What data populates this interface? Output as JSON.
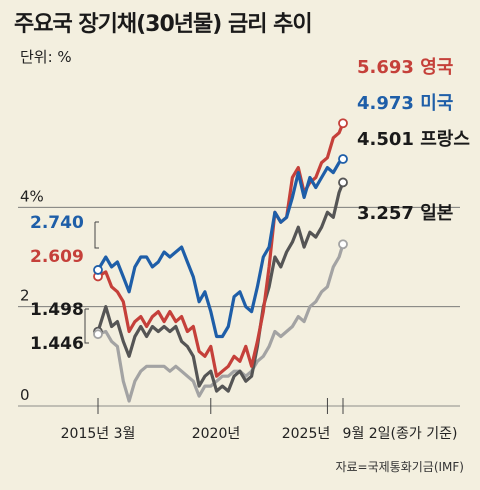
{
  "title": "주요국 장기채(30년물) 금리 추이",
  "unit": "단위: %",
  "source": "자료=국제통화기금(IMF)",
  "chart_data": {
    "type": "line",
    "title": "주요국 장기채(30년물) 금리 추이",
    "ylim": [
      0,
      6
    ],
    "y_ticks": [
      {
        "value": 4,
        "label": "4%"
      },
      {
        "value": 2,
        "label": "2"
      },
      {
        "value": 0,
        "label": "0"
      }
    ],
    "x_range": [
      2014.5,
      2025.75
    ],
    "x_ticks": [
      {
        "x": 2015.167,
        "label": "2015년 3월"
      },
      {
        "x": 2020.0,
        "label": "2020년"
      },
      {
        "x": 2025.0,
        "label": "2025년"
      },
      {
        "x": 2025.667,
        "label": "9월 2일(종가 기준)"
      }
    ],
    "grid": "horizontal",
    "series": [
      {
        "name": "영국",
        "color": "#c5403a",
        "start_label": "2.609",
        "end_label": "5.693",
        "points": [
          [
            2015.167,
            2.609
          ],
          [
            2015.5,
            2.7
          ],
          [
            2015.75,
            2.4
          ],
          [
            2016.0,
            2.3
          ],
          [
            2016.25,
            2.1
          ],
          [
            2016.5,
            1.5
          ],
          [
            2016.75,
            1.7
          ],
          [
            2017.0,
            1.8
          ],
          [
            2017.25,
            1.6
          ],
          [
            2017.5,
            1.8
          ],
          [
            2017.75,
            1.9
          ],
          [
            2018.0,
            1.7
          ],
          [
            2018.25,
            1.9
          ],
          [
            2018.5,
            1.7
          ],
          [
            2018.75,
            1.8
          ],
          [
            2019.0,
            1.5
          ],
          [
            2019.25,
            1.6
          ],
          [
            2019.5,
            1.1
          ],
          [
            2019.75,
            1.0
          ],
          [
            2020.0,
            1.2
          ],
          [
            2020.25,
            0.6
          ],
          [
            2020.5,
            0.7
          ],
          [
            2020.75,
            0.8
          ],
          [
            2021.0,
            1.0
          ],
          [
            2021.25,
            0.9
          ],
          [
            2021.5,
            1.2
          ],
          [
            2021.75,
            0.8
          ],
          [
            2022.0,
            1.3
          ],
          [
            2022.25,
            1.9
          ],
          [
            2022.5,
            2.8
          ],
          [
            2022.75,
            3.9
          ],
          [
            2023.0,
            3.7
          ],
          [
            2023.25,
            3.8
          ],
          [
            2023.5,
            4.6
          ],
          [
            2023.75,
            4.8
          ],
          [
            2024.0,
            4.3
          ],
          [
            2024.25,
            4.5
          ],
          [
            2024.5,
            4.6
          ],
          [
            2024.75,
            4.9
          ],
          [
            2025.0,
            5.0
          ],
          [
            2025.25,
            5.4
          ],
          [
            2025.5,
            5.5
          ],
          [
            2025.667,
            5.693
          ]
        ]
      },
      {
        "name": "미국",
        "color": "#1e5ea8",
        "start_label": "2.740",
        "end_label": "4.973",
        "points": [
          [
            2015.167,
            2.74
          ],
          [
            2015.5,
            3.0
          ],
          [
            2015.75,
            2.8
          ],
          [
            2016.0,
            2.9
          ],
          [
            2016.25,
            2.6
          ],
          [
            2016.5,
            2.3
          ],
          [
            2016.75,
            2.8
          ],
          [
            2017.0,
            3.0
          ],
          [
            2017.25,
            3.0
          ],
          [
            2017.5,
            2.8
          ],
          [
            2017.75,
            2.9
          ],
          [
            2018.0,
            3.1
          ],
          [
            2018.25,
            3.0
          ],
          [
            2018.5,
            3.1
          ],
          [
            2018.75,
            3.2
          ],
          [
            2019.0,
            2.9
          ],
          [
            2019.25,
            2.6
          ],
          [
            2019.5,
            2.1
          ],
          [
            2019.75,
            2.3
          ],
          [
            2020.0,
            1.9
          ],
          [
            2020.25,
            1.4
          ],
          [
            2020.5,
            1.4
          ],
          [
            2020.75,
            1.6
          ],
          [
            2021.0,
            2.2
          ],
          [
            2021.25,
            2.3
          ],
          [
            2021.5,
            2.0
          ],
          [
            2021.75,
            1.9
          ],
          [
            2022.0,
            2.4
          ],
          [
            2022.25,
            3.0
          ],
          [
            2022.5,
            3.2
          ],
          [
            2022.75,
            3.9
          ],
          [
            2023.0,
            3.7
          ],
          [
            2023.25,
            3.8
          ],
          [
            2023.5,
            4.2
          ],
          [
            2023.75,
            4.7
          ],
          [
            2024.0,
            4.2
          ],
          [
            2024.25,
            4.6
          ],
          [
            2024.5,
            4.4
          ],
          [
            2024.75,
            4.6
          ],
          [
            2025.0,
            4.8
          ],
          [
            2025.25,
            4.7
          ],
          [
            2025.5,
            4.9
          ],
          [
            2025.667,
            4.973
          ]
        ]
      },
      {
        "name": "프랑스",
        "color": "#555555",
        "start_label": "1.498",
        "end_label": "4.501",
        "points": [
          [
            2015.167,
            1.498
          ],
          [
            2015.5,
            2.0
          ],
          [
            2015.75,
            1.6
          ],
          [
            2016.0,
            1.7
          ],
          [
            2016.25,
            1.3
          ],
          [
            2016.5,
            1.0
          ],
          [
            2016.75,
            1.4
          ],
          [
            2017.0,
            1.6
          ],
          [
            2017.25,
            1.4
          ],
          [
            2017.5,
            1.6
          ],
          [
            2017.75,
            1.5
          ],
          [
            2018.0,
            1.6
          ],
          [
            2018.25,
            1.5
          ],
          [
            2018.5,
            1.6
          ],
          [
            2018.75,
            1.3
          ],
          [
            2019.0,
            1.2
          ],
          [
            2019.25,
            1.0
          ],
          [
            2019.5,
            0.4
          ],
          [
            2019.75,
            0.6
          ],
          [
            2020.0,
            0.7
          ],
          [
            2020.25,
            0.3
          ],
          [
            2020.5,
            0.4
          ],
          [
            2020.75,
            0.3
          ],
          [
            2021.0,
            0.6
          ],
          [
            2021.25,
            0.7
          ],
          [
            2021.5,
            0.5
          ],
          [
            2021.75,
            0.6
          ],
          [
            2022.0,
            1.2
          ],
          [
            2022.25,
            2.0
          ],
          [
            2022.5,
            2.4
          ],
          [
            2022.75,
            3.0
          ],
          [
            2023.0,
            2.8
          ],
          [
            2023.25,
            3.1
          ],
          [
            2023.5,
            3.3
          ],
          [
            2023.75,
            3.6
          ],
          [
            2024.0,
            3.2
          ],
          [
            2024.25,
            3.5
          ],
          [
            2024.5,
            3.4
          ],
          [
            2024.75,
            3.6
          ],
          [
            2025.0,
            3.9
          ],
          [
            2025.25,
            3.8
          ],
          [
            2025.5,
            4.3
          ],
          [
            2025.667,
            4.501
          ]
        ]
      },
      {
        "name": "일본",
        "color": "#a3a3a3",
        "start_label": "1.446",
        "end_label": "3.257",
        "points": [
          [
            2015.167,
            1.446
          ],
          [
            2015.5,
            1.5
          ],
          [
            2015.75,
            1.3
          ],
          [
            2016.0,
            1.2
          ],
          [
            2016.25,
            0.5
          ],
          [
            2016.5,
            0.1
          ],
          [
            2016.75,
            0.5
          ],
          [
            2017.0,
            0.7
          ],
          [
            2017.25,
            0.8
          ],
          [
            2017.5,
            0.8
          ],
          [
            2017.75,
            0.8
          ],
          [
            2018.0,
            0.8
          ],
          [
            2018.25,
            0.7
          ],
          [
            2018.5,
            0.8
          ],
          [
            2018.75,
            0.7
          ],
          [
            2019.0,
            0.6
          ],
          [
            2019.25,
            0.5
          ],
          [
            2019.5,
            0.2
          ],
          [
            2019.75,
            0.4
          ],
          [
            2020.0,
            0.4
          ],
          [
            2020.25,
            0.5
          ],
          [
            2020.5,
            0.6
          ],
          [
            2020.75,
            0.6
          ],
          [
            2021.0,
            0.7
          ],
          [
            2021.25,
            0.7
          ],
          [
            2021.5,
            0.6
          ],
          [
            2021.75,
            0.7
          ],
          [
            2022.0,
            0.9
          ],
          [
            2022.25,
            1.0
          ],
          [
            2022.5,
            1.2
          ],
          [
            2022.75,
            1.5
          ],
          [
            2023.0,
            1.4
          ],
          [
            2023.25,
            1.5
          ],
          [
            2023.5,
            1.6
          ],
          [
            2023.75,
            1.8
          ],
          [
            2024.0,
            1.7
          ],
          [
            2024.25,
            2.0
          ],
          [
            2024.5,
            2.1
          ],
          [
            2024.75,
            2.3
          ],
          [
            2025.0,
            2.4
          ],
          [
            2025.25,
            2.8
          ],
          [
            2025.5,
            3.0
          ],
          [
            2025.667,
            3.257
          ]
        ]
      }
    ]
  }
}
